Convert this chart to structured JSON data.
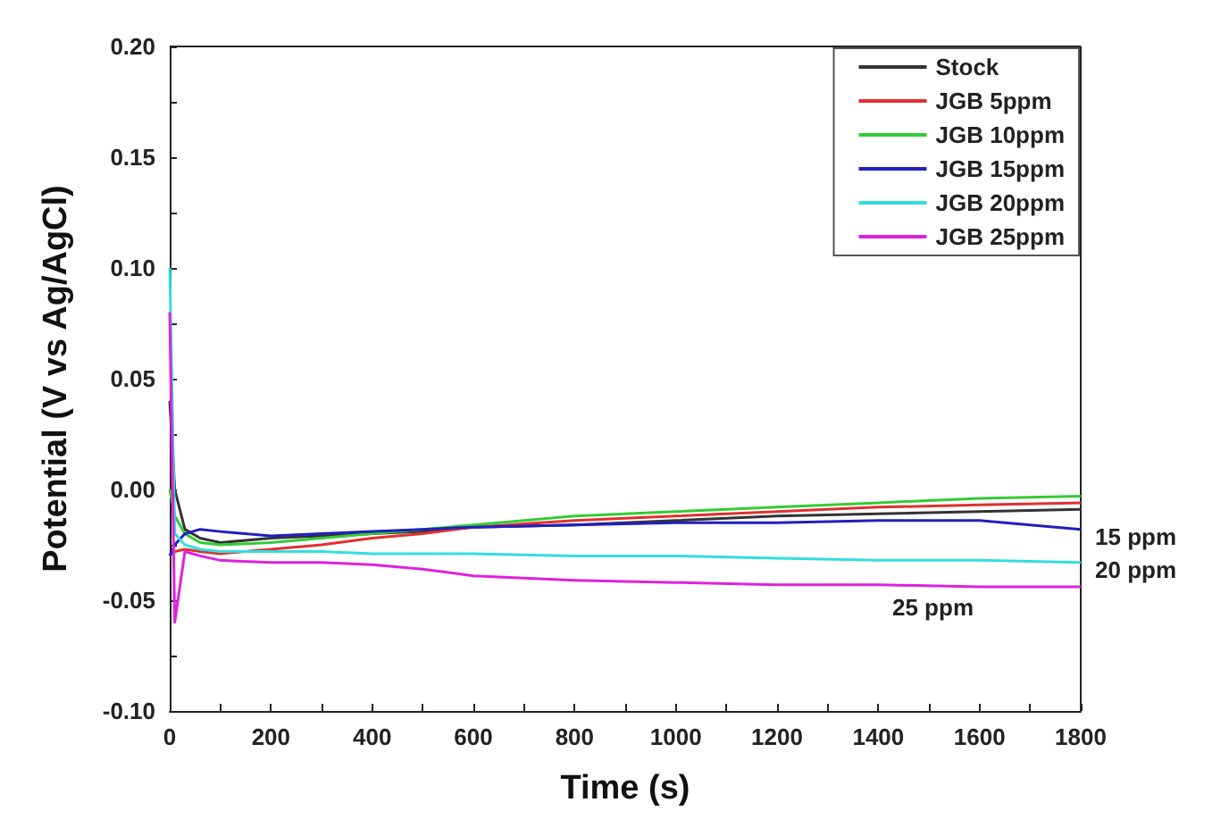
{
  "chart_data": {
    "type": "line",
    "xlabel": "Time (s)",
    "ylabel": "Potential (V vs Ag/AgCl)",
    "x": [
      0,
      10,
      30,
      60,
      100,
      200,
      300,
      400,
      500,
      600,
      800,
      1000,
      1200,
      1400,
      1600,
      1800
    ],
    "series": [
      {
        "name": "Stock",
        "color": "#333333",
        "values": [
          0.04,
          0.0,
          -0.018,
          -0.022,
          -0.024,
          -0.022,
          -0.021,
          -0.02,
          -0.019,
          -0.017,
          -0.016,
          -0.014,
          -0.012,
          -0.011,
          -0.01,
          -0.009
        ]
      },
      {
        "name": "JGB 5ppm",
        "color": "#e03030",
        "values": [
          -0.03,
          -0.028,
          -0.027,
          -0.028,
          -0.029,
          -0.027,
          -0.025,
          -0.022,
          -0.02,
          -0.017,
          -0.014,
          -0.012,
          -0.01,
          -0.008,
          -0.007,
          -0.006
        ]
      },
      {
        "name": "JGB 10ppm",
        "color": "#33cc33",
        "values": [
          0.0,
          -0.012,
          -0.02,
          -0.024,
          -0.025,
          -0.024,
          -0.022,
          -0.02,
          -0.018,
          -0.016,
          -0.012,
          -0.01,
          -0.008,
          -0.006,
          -0.004,
          -0.003
        ]
      },
      {
        "name": "JGB 15ppm",
        "color": "#2020c0",
        "values": [
          -0.03,
          -0.025,
          -0.02,
          -0.018,
          -0.019,
          -0.021,
          -0.02,
          -0.019,
          -0.018,
          -0.017,
          -0.016,
          -0.015,
          -0.015,
          -0.014,
          -0.014,
          -0.018
        ]
      },
      {
        "name": "JGB 20ppm",
        "color": "#33dddd",
        "values": [
          0.1,
          -0.02,
          -0.025,
          -0.027,
          -0.028,
          -0.028,
          -0.028,
          -0.029,
          -0.029,
          -0.029,
          -0.03,
          -0.03,
          -0.031,
          -0.032,
          -0.032,
          -0.033
        ]
      },
      {
        "name": "JGB 25ppm",
        "color": "#dd22dd",
        "values": [
          0.08,
          -0.06,
          -0.028,
          -0.03,
          -0.032,
          -0.033,
          -0.033,
          -0.034,
          -0.036,
          -0.039,
          -0.041,
          -0.042,
          -0.043,
          -0.043,
          -0.044,
          -0.044
        ]
      }
    ],
    "xlim": [
      0,
      1800
    ],
    "xticks": [
      0,
      {
        "value": 100,
        "label": null
      },
      200,
      {
        "value": 300,
        "label": null
      },
      400,
      {
        "value": 500,
        "label": null
      },
      600,
      {
        "value": 700,
        "label": null
      },
      800,
      {
        "value": 900,
        "label": null
      },
      1000,
      {
        "value": 1100,
        "label": null
      },
      1200,
      {
        "value": 1300,
        "label": null
      },
      1400,
      {
        "value": 1500,
        "label": null
      },
      1600,
      {
        "value": 1700,
        "label": null
      },
      1800
    ],
    "ylim": [
      -0.1,
      0.2
    ],
    "yticks": [
      {
        "value": -0.1,
        "label": "-0.10"
      },
      {
        "value": -0.075,
        "label": null
      },
      {
        "value": -0.05,
        "label": "-0.05"
      },
      {
        "value": -0.025,
        "label": null
      },
      {
        "value": 0,
        "label": "0.00"
      },
      {
        "value": 0.025,
        "label": null
      },
      {
        "value": 0.05,
        "label": "0.05"
      },
      {
        "value": 0.075,
        "label": null
      },
      {
        "value": 0.1,
        "label": "0.10"
      },
      {
        "value": 0.125,
        "label": null
      },
      {
        "value": 0.15,
        "label": "0.15"
      },
      {
        "value": 0.175,
        "label": null
      },
      {
        "value": 0.2,
        "label": "0.20"
      }
    ],
    "annotations": [
      {
        "text": "15 ppm",
        "x": 1800,
        "y": -0.018
      },
      {
        "text": "20 ppm",
        "x": 1800,
        "y": -0.033
      },
      "25 ppm"
    ],
    "legend": "top right",
    "grid": false,
    "marker": "none",
    "line_style": "solid"
  }
}
